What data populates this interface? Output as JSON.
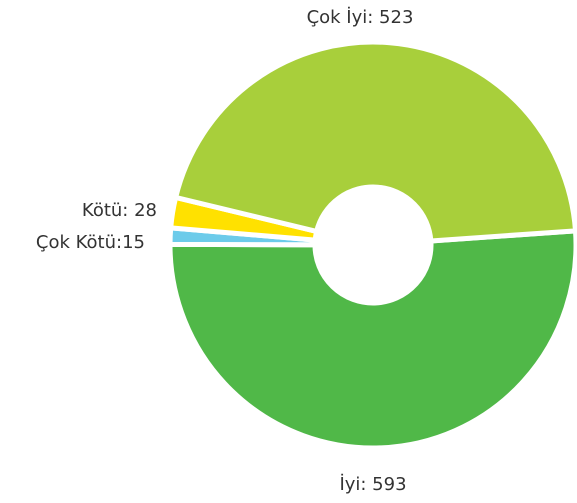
{
  "chart_data": {
    "type": "donut",
    "value_labels": [
      "İyi: 593",
      "Çok Kötü:15",
      "Kötü: 28",
      "Çok İyi: 523"
    ],
    "values": [
      593,
      15,
      28,
      523
    ],
    "colors": [
      "#50b848",
      "#6ccbea",
      "#ffe100",
      "#a8cf3b"
    ]
  }
}
